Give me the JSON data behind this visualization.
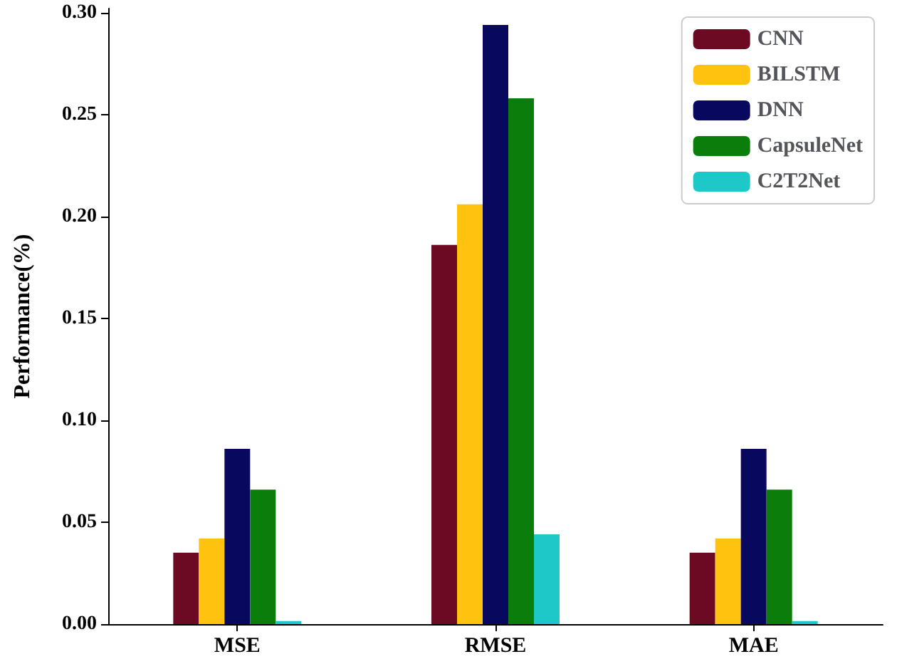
{
  "chart_data": {
    "type": "bar",
    "ylabel": "Performance(%)",
    "categories": [
      "MSE",
      "RMSE",
      "MAE"
    ],
    "series": [
      {
        "name": "CNN",
        "color": "#6b0a22",
        "values": [
          0.035,
          0.186,
          0.035
        ]
      },
      {
        "name": "BILSTM",
        "color": "#ffc20e",
        "values": [
          0.042,
          0.206,
          0.042
        ]
      },
      {
        "name": "DNN",
        "color": "#08085e",
        "values": [
          0.086,
          0.294,
          0.086
        ]
      },
      {
        "name": "CapsuleNet",
        "color": "#0b7d0b",
        "values": [
          0.066,
          0.258,
          0.066
        ]
      },
      {
        "name": "C2T2Net",
        "color": "#1ec8c8",
        "values": [
          0.0015,
          0.044,
          0.0015
        ]
      }
    ],
    "ylim": [
      0,
      0.302
    ],
    "yticks": [
      {
        "value": 0,
        "label": "0.00"
      },
      {
        "value": 0.05,
        "label": "0.05"
      },
      {
        "value": 0.1,
        "label": "0.10"
      },
      {
        "value": 0.15,
        "label": "0.15"
      },
      {
        "value": 0.2,
        "label": "0.20"
      },
      {
        "value": 0.25,
        "label": "0.25"
      },
      {
        "value": 0.3,
        "label": "0.30"
      }
    ],
    "grid": false,
    "legend": "top right"
  }
}
